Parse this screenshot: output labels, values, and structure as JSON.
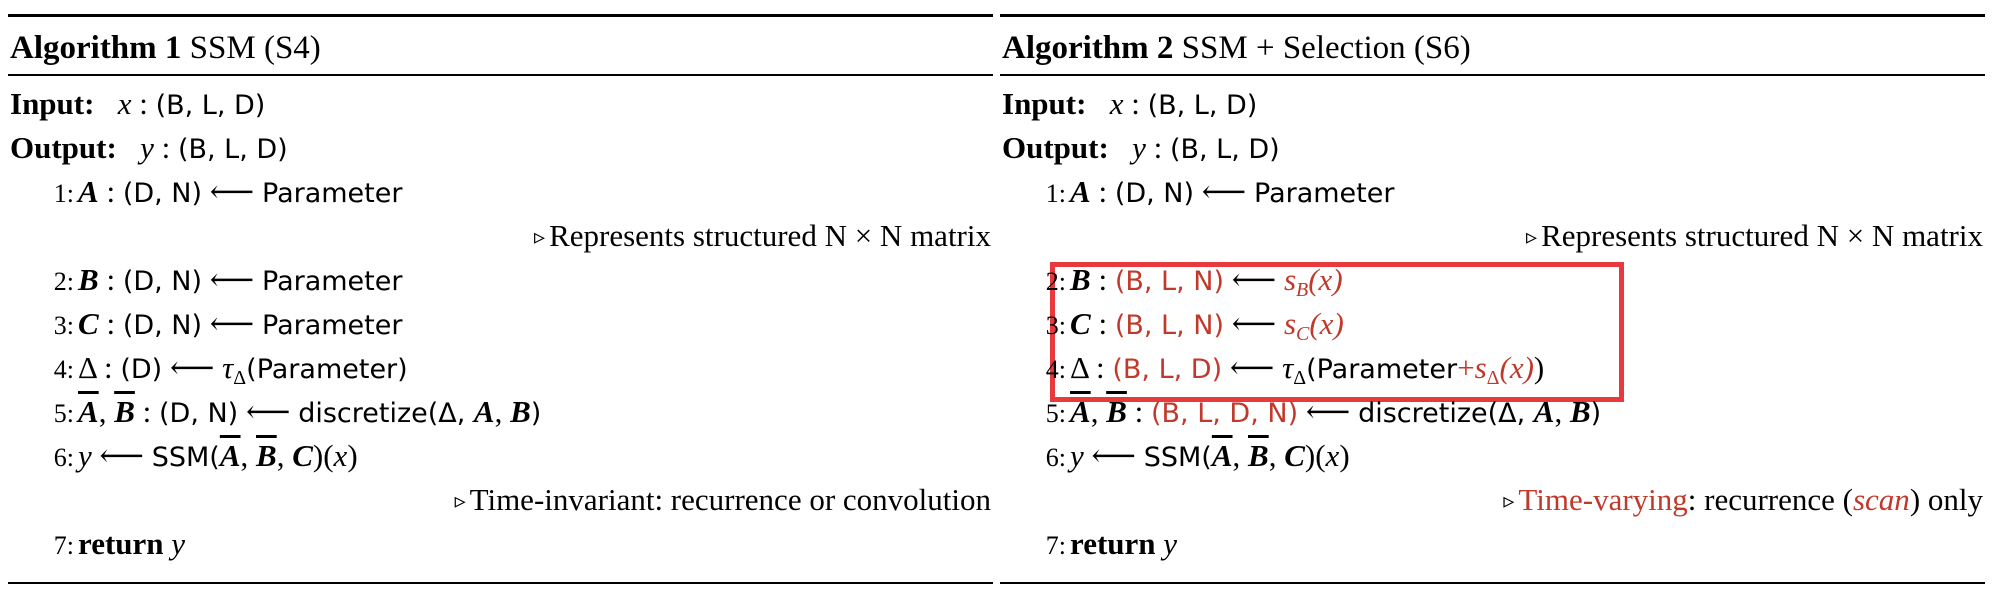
{
  "algo1": {
    "label": "Algorithm 1",
    "name": "SSM (S4)",
    "input_label": "Input:",
    "input_var": "x",
    "input_shape": "(B, L, D)",
    "output_label": "Output:",
    "output_var": "y",
    "output_shape": "(B, L, D)",
    "lines": [
      {
        "num": "1:",
        "var": "A",
        "shape": "(D, N)",
        "rhs": "Parameter"
      },
      {
        "num": "2:",
        "var": "B",
        "shape": "(D, N)",
        "rhs": "Parameter"
      },
      {
        "num": "3:",
        "var": "C",
        "shape": "(D, N)",
        "rhs": "Parameter"
      },
      {
        "num": "4:",
        "var": "Δ",
        "shape": "(D)",
        "fn": "τ",
        "fn_sub": "Δ",
        "rhs": "(Parameter)"
      },
      {
        "num": "5:",
        "var1": "A",
        "var2": "B",
        "shape": "(D, N)",
        "rhs": "discretize(Δ, ",
        "rhs_a": "A",
        "rhs_b": "B"
      },
      {
        "num": "6:",
        "var": "y",
        "rhs": "SSM(",
        "a": "A",
        "b": "B",
        "c": "C",
        "x": "x"
      },
      {
        "num": "7:",
        "kw": "return",
        "var": "y"
      }
    ],
    "comment1": "Represents structured N × N matrix",
    "comment2": "Time-invariant: recurrence or convolution"
  },
  "algo2": {
    "label": "Algorithm 2",
    "name": "SSM + Selection (S6)",
    "input_label": "Input:",
    "input_var": "x",
    "input_shape": "(B, L, D)",
    "output_label": "Output:",
    "output_var": "y",
    "output_shape": "(B, L, D)",
    "lines": [
      {
        "num": "1:",
        "var": "A",
        "shape": "(D, N)",
        "rhs": "Parameter"
      },
      {
        "num": "2:",
        "var": "B",
        "shape": "(B, L, N)",
        "fn": "s",
        "fn_sub": "B",
        "arg": "(x)"
      },
      {
        "num": "3:",
        "var": "C",
        "shape": "(B, L, N)",
        "fn": "s",
        "fn_sub": "C",
        "arg": "(x)"
      },
      {
        "num": "4:",
        "var": "Δ",
        "shape": "(B, L, D)",
        "fn": "τ",
        "fn_sub": "Δ",
        "rhs": "(Parameter",
        "plus": "+",
        "fn2": "s",
        "fn2_sub": "Δ",
        "arg": "(x)",
        "close": ")"
      },
      {
        "num": "5:",
        "var1": "A",
        "var2": "B",
        "shape": "(B, L, D, N)",
        "rhs": "discretize(Δ, ",
        "rhs_a": "A",
        "rhs_b": "B"
      },
      {
        "num": "6:",
        "var": "y",
        "rhs": "SSM(",
        "a": "A",
        "b": "B",
        "c": "C",
        "x": "x"
      },
      {
        "num": "7:",
        "kw": "return",
        "var": "y"
      }
    ],
    "comment1": "Represents structured N × N matrix",
    "comment2_red": "Time-varying",
    "comment2_mid": ": recurrence (",
    "comment2_scan": "scan",
    "comment2_end": ") only"
  },
  "highlight_color": "#e8393f",
  "accent_red": "#c0392b"
}
